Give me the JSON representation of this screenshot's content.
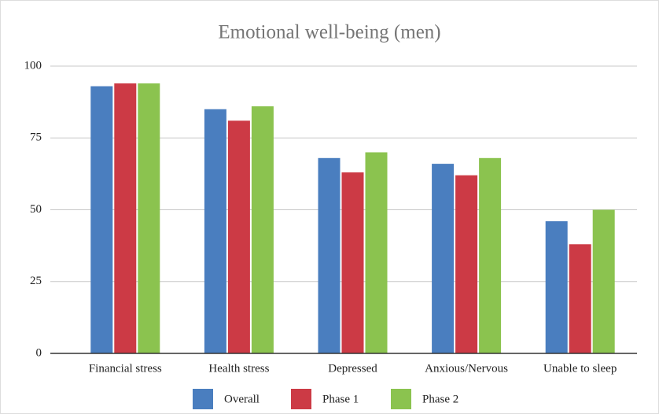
{
  "chart_data": {
    "type": "bar",
    "title": "Emotional well-being (men)",
    "categories": [
      "Financial stress",
      "Health stress",
      "Depressed",
      "Anxious/Nervous",
      "Unable to sleep"
    ],
    "series": [
      {
        "name": "Overall",
        "color": "#4a7ebf",
        "values": [
          93,
          85,
          68,
          66,
          46
        ]
      },
      {
        "name": "Phase 1",
        "color": "#cc3a45",
        "values": [
          94,
          81,
          63,
          62,
          38
        ]
      },
      {
        "name": "Phase 2",
        "color": "#8bc34f",
        "values": [
          94,
          86,
          70,
          68,
          50
        ]
      }
    ],
    "ylim": [
      0,
      100
    ],
    "yticks": [
      0,
      25,
      50,
      75,
      100
    ],
    "grid": true,
    "legend": "bottom"
  }
}
